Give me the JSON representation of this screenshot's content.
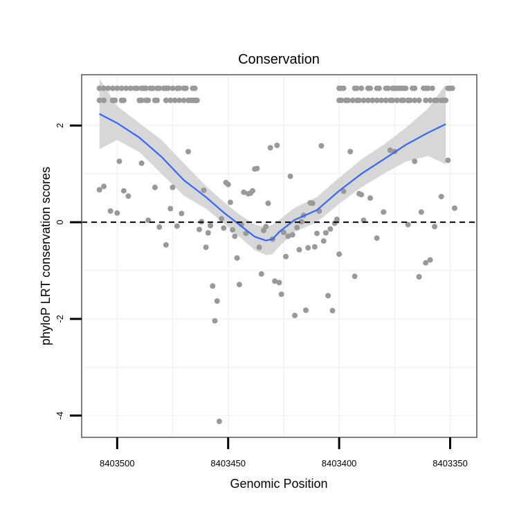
{
  "chart_data": {
    "type": "scatter",
    "title": "Conservation",
    "xlabel": "Genomic Position",
    "ylabel": "phyloP LRT conservation scores",
    "x_reversed": true,
    "xlim": [
      8403516,
      8403338
    ],
    "ylim": [
      -4.45,
      3.05
    ],
    "x_ticks": [
      8403500,
      8403450,
      8403400,
      8403350
    ],
    "x_tick_labels": [
      "8403500",
      "8403450",
      "8403400",
      "8403350"
    ],
    "y_ticks": [
      -4,
      -2,
      0,
      2
    ],
    "y_tick_labels": [
      "-4",
      "-2",
      "0",
      "2"
    ],
    "grid": true,
    "reference_line": {
      "y": 0,
      "style": "dashed"
    },
    "colors": {
      "points": "#999999",
      "smooth_line": "#3366ff",
      "confidence_band": "#d3d3d3",
      "grid": "#f2f2f2",
      "panel_border": "#7f7f7f",
      "reference_line": "#000000"
    },
    "points": [
      {
        "x": 8403508,
        "y": 0.67
      },
      {
        "x": 8403506,
        "y": 0.74
      },
      {
        "x": 8403503,
        "y": 0.23
      },
      {
        "x": 8403500,
        "y": 0.19
      },
      {
        "x": 8403499,
        "y": 1.26
      },
      {
        "x": 8403497,
        "y": 0.65
      },
      {
        "x": 8403495,
        "y": 0.54
      },
      {
        "x": 8403489,
        "y": 1.22
      },
      {
        "x": 8403486,
        "y": 0.04
      },
      {
        "x": 8403483,
        "y": 0.72
      },
      {
        "x": 8403481,
        "y": -0.1
      },
      {
        "x": 8403478,
        "y": -0.47
      },
      {
        "x": 8403476,
        "y": 0.28
      },
      {
        "x": 8403475,
        "y": 0.72
      },
      {
        "x": 8403473,
        "y": -0.08
      },
      {
        "x": 8403471,
        "y": 0.18
      },
      {
        "x": 8403468,
        "y": 1.46
      },
      {
        "x": 8403463,
        "y": -0.15
      },
      {
        "x": 8403462,
        "y": 0.01
      },
      {
        "x": 8403461,
        "y": 0.66
      },
      {
        "x": 8403460,
        "y": -0.52
      },
      {
        "x": 8403459,
        "y": -0.22
      },
      {
        "x": 8403458,
        "y": -0.07
      },
      {
        "x": 8403457,
        "y": -1.32
      },
      {
        "x": 8403456,
        "y": -2.04
      },
      {
        "x": 8403455,
        "y": -1.63
      },
      {
        "x": 8403454,
        "y": -4.12
      },
      {
        "x": 8403453,
        "y": 0.07
      },
      {
        "x": 8403452,
        "y": -0.12
      },
      {
        "x": 8403451,
        "y": 0.82
      },
      {
        "x": 8403450,
        "y": 0.78
      },
      {
        "x": 8403449,
        "y": 0.41
      },
      {
        "x": 8403448,
        "y": -0.16
      },
      {
        "x": 8403447,
        "y": -0.29
      },
      {
        "x": 8403446,
        "y": -0.74
      },
      {
        "x": 8403445,
        "y": -1.29
      },
      {
        "x": 8403444,
        "y": -0.05
      },
      {
        "x": 8403443,
        "y": 0.62
      },
      {
        "x": 8403442,
        "y": -0.23
      },
      {
        "x": 8403441,
        "y": 0.59
      },
      {
        "x": 8403440,
        "y": 0.6
      },
      {
        "x": 8403439,
        "y": 0.65
      },
      {
        "x": 8403438,
        "y": 1.1
      },
      {
        "x": 8403437,
        "y": 1.11
      },
      {
        "x": 8403436,
        "y": -0.52
      },
      {
        "x": 8403435,
        "y": -1.07
      },
      {
        "x": 8403434,
        "y": -0.17
      },
      {
        "x": 8403433,
        "y": -0.09
      },
      {
        "x": 8403432,
        "y": 0.39
      },
      {
        "x": 8403431,
        "y": 1.54
      },
      {
        "x": 8403430,
        "y": -0.35
      },
      {
        "x": 8403429,
        "y": -1.22
      },
      {
        "x": 8403428,
        "y": 1.59
      },
      {
        "x": 8403427,
        "y": -1.25
      },
      {
        "x": 8403426,
        "y": -1.49
      },
      {
        "x": 8403425,
        "y": -0.21
      },
      {
        "x": 8403424,
        "y": -0.71
      },
      {
        "x": 8403423,
        "y": -0.29
      },
      {
        "x": 8403422,
        "y": 0.95
      },
      {
        "x": 8403421,
        "y": -0.26
      },
      {
        "x": 8403420,
        "y": -1.93
      },
      {
        "x": 8403419,
        "y": -0.11
      },
      {
        "x": 8403418,
        "y": -0.57
      },
      {
        "x": 8403417,
        "y": 0.01
      },
      {
        "x": 8403416,
        "y": 0.14
      },
      {
        "x": 8403415,
        "y": -1.82
      },
      {
        "x": 8403414,
        "y": -0.53
      },
      {
        "x": 8403413,
        "y": 0.4
      },
      {
        "x": 8403412,
        "y": 0.39
      },
      {
        "x": 8403411,
        "y": -0.51
      },
      {
        "x": 8403410,
        "y": -0.23
      },
      {
        "x": 8403409,
        "y": 0.23
      },
      {
        "x": 8403408,
        "y": 1.58
      },
      {
        "x": 8403407,
        "y": -0.39
      },
      {
        "x": 8403406,
        "y": -0.22
      },
      {
        "x": 8403405,
        "y": -1.52
      },
      {
        "x": 8403404,
        "y": -0.14
      },
      {
        "x": 8403403,
        "y": -1.83
      },
      {
        "x": 8403402,
        "y": -0.02
      },
      {
        "x": 8403401,
        "y": 0.06
      },
      {
        "x": 8403400,
        "y": -0.66
      },
      {
        "x": 8403398,
        "y": 0.64
      },
      {
        "x": 8403395,
        "y": 1.46
      },
      {
        "x": 8403393,
        "y": -1.12
      },
      {
        "x": 8403391,
        "y": 0.59
      },
      {
        "x": 8403390,
        "y": 0.57
      },
      {
        "x": 8403389,
        "y": 0.04
      },
      {
        "x": 8403386,
        "y": 0.5
      },
      {
        "x": 8403383,
        "y": -0.33
      },
      {
        "x": 8403380,
        "y": 0.21
      },
      {
        "x": 8403377,
        "y": 1.49
      },
      {
        "x": 8403375,
        "y": 1.46
      },
      {
        "x": 8403369,
        "y": -0.05
      },
      {
        "x": 8403366,
        "y": 1.26
      },
      {
        "x": 8403364,
        "y": -1.13
      },
      {
        "x": 8403363,
        "y": 0.21
      },
      {
        "x": 8403361,
        "y": -0.84
      },
      {
        "x": 8403359,
        "y": -0.78
      },
      {
        "x": 8403357,
        "y": -0.09
      },
      {
        "x": 8403354,
        "y": 0.53
      },
      {
        "x": 8403351,
        "y": 1.28
      },
      {
        "x": 8403348,
        "y": 0.29
      }
    ],
    "saturated_points": {
      "description": "rows of capped scores near the top of the range",
      "upper_y": 2.77,
      "lower_y": 2.52,
      "upper_x": [
        8403508,
        8403506,
        8403504,
        8403502,
        8403500,
        8403498,
        8403496,
        8403494,
        8403492,
        8403491,
        8403489,
        8403488,
        8403487,
        8403485,
        8403484,
        8403482,
        8403481,
        8403479,
        8403478,
        8403477,
        8403475,
        8403473,
        8403472,
        8403470,
        8403469,
        8403466,
        8403465,
        8403400,
        8403399,
        8403398,
        8403393,
        8403392,
        8403390,
        8403387,
        8403386,
        8403383,
        8403382,
        8403379,
        8403378,
        8403376,
        8403375,
        8403374,
        8403373,
        8403372,
        8403371,
        8403370,
        8403367,
        8403366,
        8403362,
        8403361,
        8403360,
        8403358,
        8403351,
        8403350,
        8403349
      ],
      "lower_x": [
        8403508,
        8403506,
        8403502,
        8403501,
        8403498,
        8403497,
        8403490,
        8403489,
        8403487,
        8403486,
        8403483,
        8403482,
        8403478,
        8403476,
        8403474,
        8403472,
        8403470,
        8403468,
        8403467,
        8403466,
        8403465,
        8403464,
        8403400,
        8403399,
        8403397,
        8403396,
        8403394,
        8403392,
        8403391,
        8403389,
        8403387,
        8403385,
        8403383,
        8403381,
        8403379,
        8403377,
        8403376,
        8403374,
        8403372,
        8403371,
        8403369,
        8403368,
        8403366,
        8403364,
        8403361,
        8403359,
        8403357,
        8403356,
        8403354,
        8403353,
        8403352
      ]
    },
    "smooth": {
      "method": "loess",
      "x": [
        8403508,
        8403500,
        8403490,
        8403480,
        8403470,
        8403460,
        8403452,
        8403445,
        8403438,
        8403433,
        8403430,
        8403427,
        8403420,
        8403410,
        8403400,
        8403390,
        8403380,
        8403370,
        8403360,
        8403352
      ],
      "y": [
        2.24,
        2.05,
        1.75,
        1.35,
        0.87,
        0.52,
        0.2,
        -0.05,
        -0.3,
        -0.38,
        -0.35,
        -0.2,
        0.05,
        0.25,
        0.65,
        1.0,
        1.3,
        1.6,
        1.85,
        2.03
      ],
      "ci_upper": [
        2.97,
        2.4,
        2.05,
        1.7,
        1.22,
        0.75,
        0.42,
        0.16,
        -0.05,
        -0.1,
        -0.05,
        0.05,
        0.3,
        0.52,
        0.92,
        1.3,
        1.6,
        1.95,
        2.35,
        2.85
      ],
      "ci_lower": [
        1.51,
        1.7,
        1.45,
        1.0,
        0.55,
        0.28,
        -0.02,
        -0.3,
        -0.58,
        -0.68,
        -0.66,
        -0.5,
        -0.2,
        0.0,
        0.38,
        0.72,
        1.0,
        1.25,
        1.37,
        1.2
      ]
    }
  }
}
